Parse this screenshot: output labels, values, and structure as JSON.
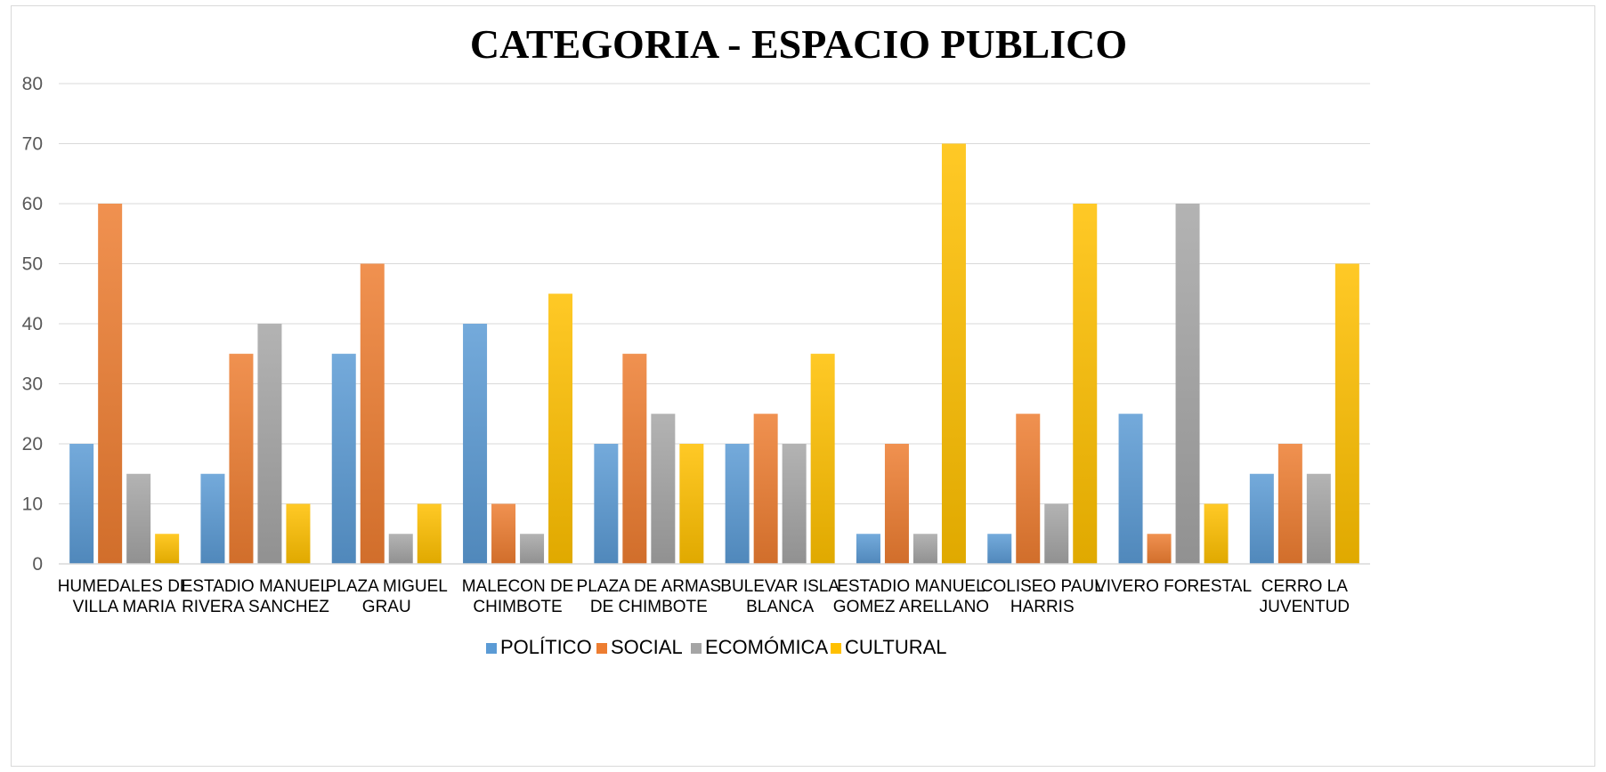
{
  "chart_data": {
    "type": "bar",
    "title": "CATEGORIA - ESPACIO PUBLICO",
    "xlabel": "",
    "ylabel": "",
    "ylim": [
      0,
      80
    ],
    "yticks": [
      0,
      10,
      20,
      30,
      40,
      50,
      60,
      70,
      80
    ],
    "grid": true,
    "legend_position": "bottom",
    "categories": [
      [
        "HUMEDALES DE",
        "VILLA MARIA"
      ],
      [
        "ESTADIO MANUEL",
        "RIVERA SANCHEZ"
      ],
      [
        "PLAZA MIGUEL",
        "GRAU"
      ],
      [
        "MALECON DE",
        "CHIMBOTE"
      ],
      [
        "PLAZA DE ARMAS",
        "DE CHIMBOTE"
      ],
      [
        "BULEVAR ISLA",
        "BLANCA"
      ],
      [
        "ESTADIO MANUEL",
        "GOMEZ ARELLANO"
      ],
      [
        "COLISEO PAUL",
        "HARRIS"
      ],
      [
        "VIVERO FORESTAL"
      ],
      [
        "CERRO LA",
        "JUVENTUD"
      ]
    ],
    "series": [
      {
        "name": "POLÍTICO",
        "color": "#5b9bd5",
        "values": [
          20,
          15,
          35,
          40,
          20,
          20,
          5,
          5,
          25,
          15
        ]
      },
      {
        "name": "SOCIAL",
        "color": "#ed7d31",
        "values": [
          60,
          35,
          50,
          10,
          35,
          25,
          20,
          25,
          5,
          20
        ]
      },
      {
        "name": "ECOMÓMICA",
        "color": "#a5a5a5",
        "values": [
          15,
          40,
          5,
          5,
          25,
          20,
          5,
          10,
          60,
          15
        ]
      },
      {
        "name": "CULTURAL",
        "color": "#ffc000",
        "values": [
          5,
          10,
          10,
          45,
          20,
          35,
          70,
          60,
          10,
          50
        ]
      }
    ]
  }
}
